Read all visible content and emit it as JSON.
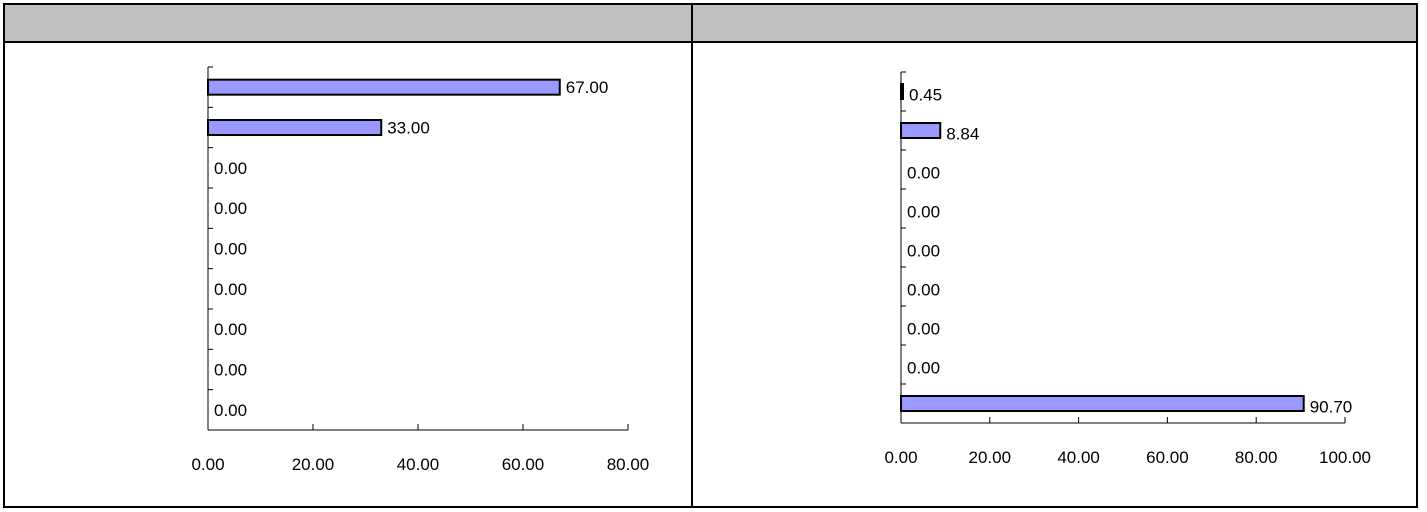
{
  "panels": [
    {
      "header": ""
    },
    {
      "header": ""
    }
  ],
  "chart_data": [
    {
      "type": "bar",
      "orientation": "horizontal",
      "values": [
        67.0,
        33.0,
        0.0,
        0.0,
        0.0,
        0.0,
        0.0,
        0.0,
        0.0
      ],
      "value_labels": [
        "67.00",
        "33.00",
        "0.00",
        "0.00",
        "0.00",
        "0.00",
        "0.00",
        "0.00",
        "0.00"
      ],
      "xlim": [
        0,
        80
      ],
      "x_ticks": [
        0,
        20,
        40,
        60,
        80
      ],
      "x_tick_labels": [
        "0.00",
        "20.00",
        "40.00",
        "60.00",
        "80.00"
      ],
      "bar_color": "#9999ff",
      "grid": false
    },
    {
      "type": "bar",
      "orientation": "horizontal",
      "values": [
        0.45,
        8.84,
        0.0,
        0.0,
        0.0,
        0.0,
        0.0,
        0.0,
        90.7
      ],
      "value_labels": [
        "0.45",
        "8.84",
        "0.00",
        "0.00",
        "0.00",
        "0.00",
        "0.00",
        "0.00",
        "90.70"
      ],
      "xlim": [
        0,
        100
      ],
      "x_ticks": [
        0,
        20,
        40,
        60,
        80,
        100
      ],
      "x_tick_labels": [
        "0.00",
        "20.00",
        "40.00",
        "60.00",
        "80.00",
        "100.00"
      ],
      "bar_color": "#9999ff",
      "grid": false
    }
  ]
}
